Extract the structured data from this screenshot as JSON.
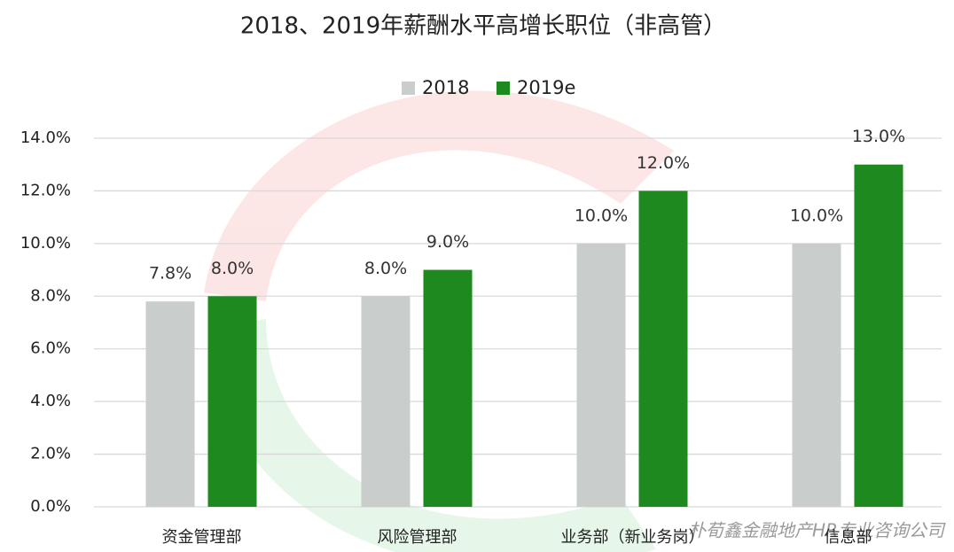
{
  "chart_data": {
    "type": "bar",
    "title": "2018、2019年薪酬水平高增长职位（非高管）",
    "categories": [
      "资金管理部",
      "风险管理部",
      "业务部（新业务岗）",
      "信息部"
    ],
    "series": [
      {
        "name": "2018",
        "color": "#c9cecc",
        "values": [
          7.8,
          8.0,
          10.0,
          10.0
        ],
        "value_labels": [
          "7.8%",
          "8.0%",
          "10.0%",
          "10.0%"
        ]
      },
      {
        "name": "2019e",
        "color": "#1e891e",
        "values": [
          8.0,
          9.0,
          12.0,
          13.0
        ],
        "value_labels": [
          "8.0%",
          "9.0%",
          "12.0%",
          "13.0%"
        ]
      }
    ],
    "ylim": [
      0,
      14
    ],
    "yticks": [
      {
        "value": 0,
        "label": "0.0%"
      },
      {
        "value": 2,
        "label": "2.0%"
      },
      {
        "value": 4,
        "label": "4.0%"
      },
      {
        "value": 6,
        "label": "6.0%"
      },
      {
        "value": 8,
        "label": "8.0%"
      },
      {
        "value": 10,
        "label": "10.0%"
      },
      {
        "value": 12,
        "label": "12.0%"
      },
      {
        "value": 14,
        "label": "14.0%"
      }
    ],
    "grid": true,
    "legend": "top",
    "watermark": "朴荀鑫金融地产HR专业咨询公司"
  }
}
